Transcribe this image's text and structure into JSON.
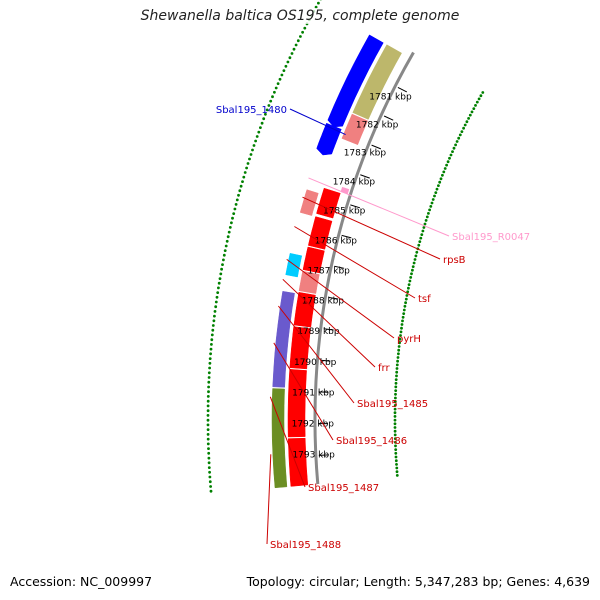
{
  "title": "Shewanella baltica OS195, complete genome",
  "accession_label": "Accession: NC_009997",
  "topology_label": "Topology: circular; Length: 5,347,283 bp; Genes: 4,639",
  "ticks": [
    {
      "label": "1781 kbp",
      "kbp": 1781
    },
    {
      "label": "1782 kbp",
      "kbp": 1782
    },
    {
      "label": "1783 kbp",
      "kbp": 1783
    },
    {
      "label": "1784 kbp",
      "kbp": 1784
    },
    {
      "label": "1785 kbp",
      "kbp": 1785
    },
    {
      "label": "1786 kbp",
      "kbp": 1786
    },
    {
      "label": "1787 kbp",
      "kbp": 1787
    },
    {
      "label": "1788 kbp",
      "kbp": 1788
    },
    {
      "label": "1789 kbp",
      "kbp": 1789
    },
    {
      "label": "1790 kbp",
      "kbp": 1790
    },
    {
      "label": "1791 kbp",
      "kbp": 1791
    },
    {
      "label": "1792 kbp",
      "kbp": 1792
    },
    {
      "label": "1793 kbp",
      "kbp": 1793
    }
  ],
  "gene_labels": [
    {
      "name": "Sbal195_1480",
      "color": "#0000cc"
    },
    {
      "name": "Sbal195_R0047",
      "color": "#ff99cc"
    },
    {
      "name": "rpsB",
      "color": "#cc0000"
    },
    {
      "name": "tsf",
      "color": "#cc0000"
    },
    {
      "name": "pyrH",
      "color": "#cc0000"
    },
    {
      "name": "frr",
      "color": "#cc0000"
    },
    {
      "name": "Sbal195_1485",
      "color": "#cc0000"
    },
    {
      "name": "Sbal195_1486",
      "color": "#cc0000"
    },
    {
      "name": "Sbal195_1487",
      "color": "#cc0000"
    },
    {
      "name": "Sbal195_1488",
      "color": "#cc0000"
    }
  ],
  "colors": {
    "cds_red": "#ff0000",
    "cds_pink": "#f08080",
    "cds_blue": "#0000ff",
    "cds_cyan": "#00ccff",
    "cds_purple": "#6a5acd",
    "cds_olive": "#6b8e23",
    "cds_khaki": "#bdb76b",
    "rna_pink": "#ff99cc",
    "backbone": "#888888",
    "tick_green": "#008000"
  }
}
